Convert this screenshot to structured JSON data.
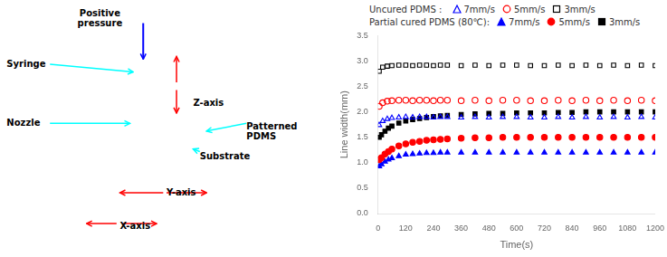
{
  "chart_data": {
    "type": "scatter",
    "xlabel": "Time(s)",
    "ylabel": "Line width(mm)",
    "annotations": [
      "Positive\npressure",
      "Syringe",
      "Nozzle",
      "Z-axis",
      "Patterned\nPDMS",
      "Substrate",
      "Y-axis",
      "X-axis"
    ],
    "xlim": [
      0,
      1200
    ],
    "ylim": [
      0.0,
      3.5
    ],
    "xticks": [
      0,
      120,
      240,
      360,
      480,
      600,
      720,
      840,
      960,
      1080,
      1200
    ],
    "yticks": [
      {
        "value": 0.0,
        "label": "0.0"
      },
      0.5,
      {
        "value": 1.0,
        "label": "1.0"
      },
      1.5,
      {
        "value": 2.0,
        "label": "2.0"
      },
      2.5,
      {
        "value": 3.0,
        "label": "3.0"
      },
      3.5
    ],
    "grid": false,
    "legend": "top",
    "groups": [
      {
        "name": "Uncured PDMS : ",
        "series": [
          {
            "name": "3mm/s",
            "color": "black",
            "marker": "open-square",
            "x": [
              5,
              20,
              40,
              60,
              90,
              120,
              150,
              180,
              210,
              240,
              270,
              300,
              360,
              420,
              480,
              540,
              600,
              660,
              720,
              780,
              840,
              900,
              960,
              1020,
              1080,
              1140,
              1200
            ],
            "values": [
              2.8,
              2.88,
              2.9,
              2.91,
              2.92,
              2.92,
              2.91,
              2.92,
              2.92,
              2.91,
              2.92,
              2.92,
              2.91,
              2.92,
              2.91,
              2.92,
              2.92,
              2.91,
              2.91,
              2.92,
              2.91,
              2.92,
              2.91,
              2.92,
              2.91,
              2.92,
              2.91
            ]
          },
          {
            "name": "5mm/s",
            "color": "red",
            "marker": "open-circle",
            "x": [
              5,
              20,
              40,
              60,
              90,
              120,
              150,
              180,
              210,
              240,
              270,
              300,
              360,
              420,
              480,
              540,
              600,
              660,
              720,
              780,
              840,
              900,
              960,
              1020,
              1080,
              1140,
              1200
            ],
            "values": [
              2.11,
              2.18,
              2.21,
              2.22,
              2.23,
              2.23,
              2.22,
              2.23,
              2.23,
              2.22,
              2.23,
              2.23,
              2.22,
              2.23,
              2.22,
              2.23,
              2.23,
              2.22,
              2.22,
              2.23,
              2.22,
              2.23,
              2.22,
              2.23,
              2.22,
              2.23,
              2.22
            ]
          },
          {
            "name": "7mm/s",
            "color": "blue",
            "marker": "open-triangle",
            "x": [
              5,
              20,
              40,
              60,
              90,
              120,
              150,
              180,
              210,
              240,
              270,
              300,
              360,
              420,
              480,
              540,
              600,
              660,
              720,
              780,
              840,
              900,
              960,
              1020,
              1080,
              1140,
              1200
            ],
            "values": [
              1.74,
              1.82,
              1.86,
              1.88,
              1.89,
              1.9,
              1.89,
              1.9,
              1.9,
              1.89,
              1.9,
              1.9,
              1.89,
              1.9,
              1.89,
              1.9,
              1.9,
              1.89,
              1.89,
              1.9,
              1.89,
              1.9,
              1.89,
              1.9,
              1.89,
              1.9,
              1.89
            ]
          }
        ]
      },
      {
        "name": "Partial cured PDMS (80℃):",
        "series": [
          {
            "name": "3mm/s",
            "color": "black",
            "marker": "filled-square",
            "x": [
              5,
              15,
              30,
              45,
              60,
              90,
              120,
              150,
              180,
              210,
              240,
              270,
              300,
              360,
              420,
              480,
              540,
              600,
              660,
              720,
              780,
              840,
              900,
              960,
              1020,
              1080,
              1140,
              1200
            ],
            "values": [
              1.5,
              1.55,
              1.62,
              1.68,
              1.72,
              1.78,
              1.82,
              1.85,
              1.87,
              1.89,
              1.91,
              1.92,
              1.93,
              1.95,
              1.96,
              1.97,
              1.97,
              1.98,
              1.98,
              1.98,
              1.99,
              1.99,
              2.0,
              2.0,
              2.0,
              2.0,
              2.0,
              2.0
            ]
          },
          {
            "name": "5mm/s",
            "color": "red",
            "marker": "filled-circle",
            "x": [
              5,
              15,
              30,
              45,
              60,
              90,
              120,
              150,
              180,
              210,
              240,
              270,
              300,
              360,
              420,
              480,
              540,
              600,
              660,
              720,
              780,
              840,
              900,
              960,
              1020,
              1080,
              1140,
              1200
            ],
            "values": [
              1.06,
              1.1,
              1.17,
              1.22,
              1.27,
              1.33,
              1.37,
              1.4,
              1.42,
              1.44,
              1.45,
              1.46,
              1.47,
              1.48,
              1.49,
              1.49,
              1.5,
              1.5,
              1.5,
              1.5,
              1.5,
              1.5,
              1.5,
              1.5,
              1.5,
              1.5,
              1.5,
              1.5
            ]
          },
          {
            "name": "7mm/s",
            "color": "blue",
            "marker": "filled-triangle",
            "x": [
              5,
              15,
              30,
              45,
              60,
              90,
              120,
              150,
              180,
              210,
              240,
              270,
              300,
              360,
              420,
              480,
              540,
              600,
              660,
              720,
              780,
              840,
              900,
              960,
              1020,
              1080,
              1140,
              1200
            ],
            "values": [
              0.93,
              0.97,
              1.02,
              1.06,
              1.09,
              1.13,
              1.16,
              1.17,
              1.18,
              1.19,
              1.19,
              1.2,
              1.2,
              1.2,
              1.2,
              1.2,
              1.2,
              1.2,
              1.2,
              1.2,
              1.2,
              1.2,
              1.2,
              1.2,
              1.2,
              1.2,
              1.2,
              1.2
            ]
          }
        ]
      }
    ]
  }
}
